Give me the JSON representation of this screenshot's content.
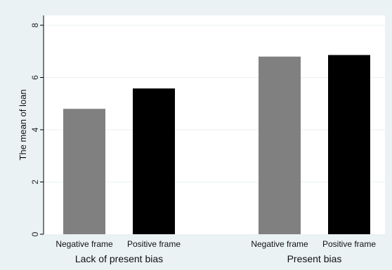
{
  "chart_data": {
    "type": "bar",
    "title": "",
    "xlabel": "",
    "ylabel": "The mean of loan",
    "ylim": [
      0,
      8
    ],
    "yticks": [
      0,
      2,
      4,
      6,
      8
    ],
    "grid": true,
    "groups": [
      {
        "label": "Lack of present bias",
        "bars": [
          {
            "label": "Negative frame",
            "value": 4.8,
            "color": "#808080"
          },
          {
            "label": "Positive frame",
            "value": 5.58,
            "color": "#000000"
          }
        ]
      },
      {
        "label": "Present bias",
        "bars": [
          {
            "label": "Negative frame",
            "value": 6.8,
            "color": "#808080"
          },
          {
            "label": "Positive frame",
            "value": 6.86,
            "color": "#000000"
          }
        ]
      }
    ]
  }
}
